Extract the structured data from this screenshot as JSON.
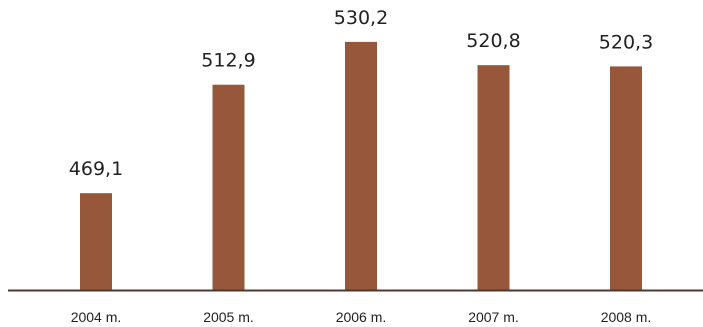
{
  "chart_data": {
    "type": "bar",
    "categories": [
      "2004 m.",
      "2005 m.",
      "2006 m.",
      "2007 m.",
      "2008 m."
    ],
    "values": [
      469.1,
      512.9,
      530.2,
      520.8,
      520.3
    ],
    "value_labels": [
      "469,1",
      "512,9",
      "530,2",
      "520,8",
      "520,3"
    ],
    "title": "",
    "xlabel": "",
    "ylabel": "",
    "ylim": [
      430,
      535
    ],
    "grid": false,
    "legend": "none"
  },
  "colors": {
    "bar": "#96573a",
    "axis": "#4a3a30",
    "text": "#222222",
    "background": "#ffffff"
  }
}
